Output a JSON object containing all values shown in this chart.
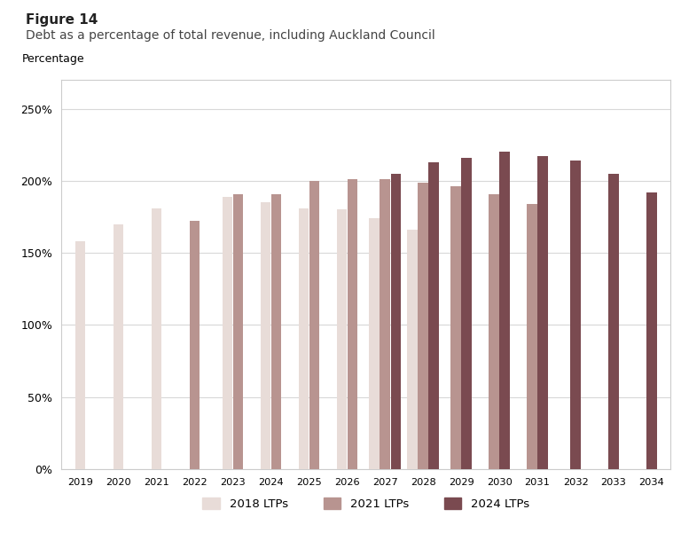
{
  "title_line1": "Figure 14",
  "title_line2": "Debt as a percentage of total revenue, including Auckland Council",
  "ylabel": "Percentage",
  "years": [
    2019,
    2020,
    2021,
    2022,
    2023,
    2024,
    2025,
    2026,
    2027,
    2028,
    2029,
    2030,
    2031,
    2032,
    2033,
    2034
  ],
  "series": {
    "2018 LTPs": {
      "data": [
        158,
        170,
        181,
        null,
        189,
        185,
        181,
        180,
        174,
        166,
        null,
        null,
        null,
        null,
        null,
        null
      ],
      "color": "#e8dcd8"
    },
    "2021 LTPs": {
      "data": [
        null,
        null,
        null,
        172,
        191,
        191,
        200,
        201,
        201,
        199,
        196,
        191,
        184,
        null,
        null,
        null
      ],
      "color": "#b89490"
    },
    "2024 LTPs": {
      "data": [
        null,
        null,
        null,
        null,
        null,
        null,
        null,
        null,
        205,
        213,
        216,
        220,
        217,
        214,
        205,
        192
      ],
      "color": "#7a4a50"
    }
  },
  "ylim": [
    0,
    270
  ],
  "yticks": [
    0,
    50,
    100,
    150,
    200,
    250
  ],
  "ytick_labels": [
    "0%",
    "50%",
    "100%",
    "150%",
    "200%",
    "250%"
  ],
  "background_color": "#ffffff",
  "border_color": "#cccccc",
  "grid_color": "#d8d8d8",
  "bar_width": 0.28
}
